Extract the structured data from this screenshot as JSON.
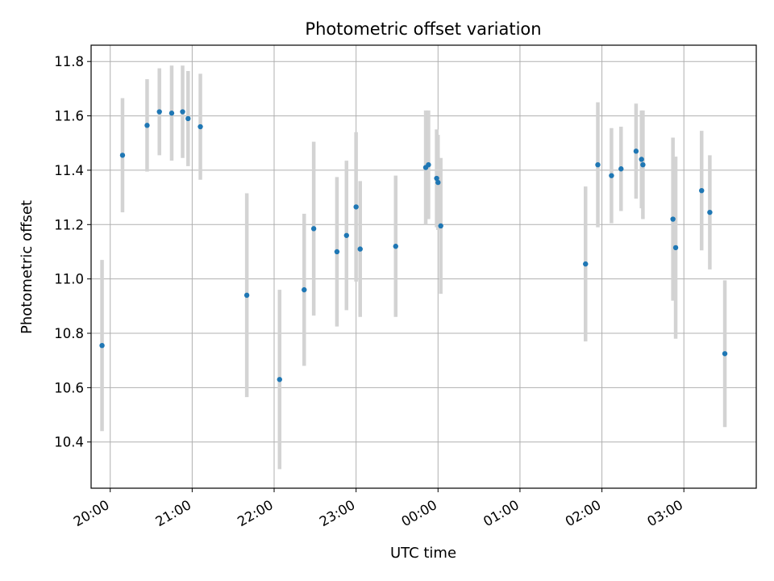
{
  "chart_data": {
    "type": "scatter",
    "title": "Photometric offset variation",
    "xlabel": "UTC time",
    "ylabel": "Photometric offset",
    "x_ticks": [
      "20:00",
      "21:00",
      "22:00",
      "23:00",
      "00:00",
      "01:00",
      "02:00",
      "03:00"
    ],
    "y_ticks": [
      "10.4",
      "10.6",
      "10.8",
      "11.0",
      "11.2",
      "11.4",
      "11.6",
      "11.8"
    ],
    "xlim": [
      "19:46",
      "03:53"
    ],
    "ylim": [
      10.23,
      11.86
    ],
    "grid": true,
    "point_color": "#1f77b4",
    "errorbar_color": "#d3d3d3",
    "points": [
      {
        "time": "19:54",
        "y": 10.755,
        "err": 0.315
      },
      {
        "time": "20:09",
        "y": 11.455,
        "err": 0.21
      },
      {
        "time": "20:27",
        "y": 11.565,
        "err": 0.17
      },
      {
        "time": "20:36",
        "y": 11.615,
        "err": 0.16
      },
      {
        "time": "20:45",
        "y": 11.61,
        "err": 0.175
      },
      {
        "time": "20:53",
        "y": 11.615,
        "err": 0.17
      },
      {
        "time": "20:57",
        "y": 11.59,
        "err": 0.175
      },
      {
        "time": "21:06",
        "y": 11.56,
        "err": 0.195
      },
      {
        "time": "21:40",
        "y": 10.94,
        "err": 0.375
      },
      {
        "time": "22:04",
        "y": 10.63,
        "err": 0.33
      },
      {
        "time": "22:22",
        "y": 10.96,
        "err": 0.28
      },
      {
        "time": "22:29",
        "y": 11.185,
        "err": 0.32
      },
      {
        "time": "22:46",
        "y": 11.1,
        "err": 0.275
      },
      {
        "time": "22:53",
        "y": 11.16,
        "err": 0.275
      },
      {
        "time": "23:00",
        "y": 11.265,
        "err": 0.275
      },
      {
        "time": "23:03",
        "y": 11.11,
        "err": 0.25
      },
      {
        "time": "23:29",
        "y": 11.12,
        "err": 0.26
      },
      {
        "time": "23:51",
        "y": 11.41,
        "err": 0.21
      },
      {
        "time": "23:53",
        "y": 11.42,
        "err": 0.2
      },
      {
        "time": "23:59",
        "y": 11.37,
        "err": 0.18
      },
      {
        "time": "00:00",
        "y": 11.355,
        "err": 0.175
      },
      {
        "time": "00:02",
        "y": 11.195,
        "err": 0.25
      },
      {
        "time": "01:48",
        "y": 11.055,
        "err": 0.285
      },
      {
        "time": "01:57",
        "y": 11.42,
        "err": 0.23
      },
      {
        "time": "02:07",
        "y": 11.38,
        "err": 0.175
      },
      {
        "time": "02:14",
        "y": 11.405,
        "err": 0.155
      },
      {
        "time": "02:25",
        "y": 11.47,
        "err": 0.175
      },
      {
        "time": "02:29",
        "y": 11.44,
        "err": 0.18
      },
      {
        "time": "02:30",
        "y": 11.42,
        "err": 0.2
      },
      {
        "time": "02:52",
        "y": 11.22,
        "err": 0.3
      },
      {
        "time": "02:54",
        "y": 11.115,
        "err": 0.335
      },
      {
        "time": "03:13",
        "y": 11.325,
        "err": 0.22
      },
      {
        "time": "03:19",
        "y": 11.245,
        "err": 0.21
      },
      {
        "time": "03:30",
        "y": 10.725,
        "err": 0.27
      }
    ]
  }
}
